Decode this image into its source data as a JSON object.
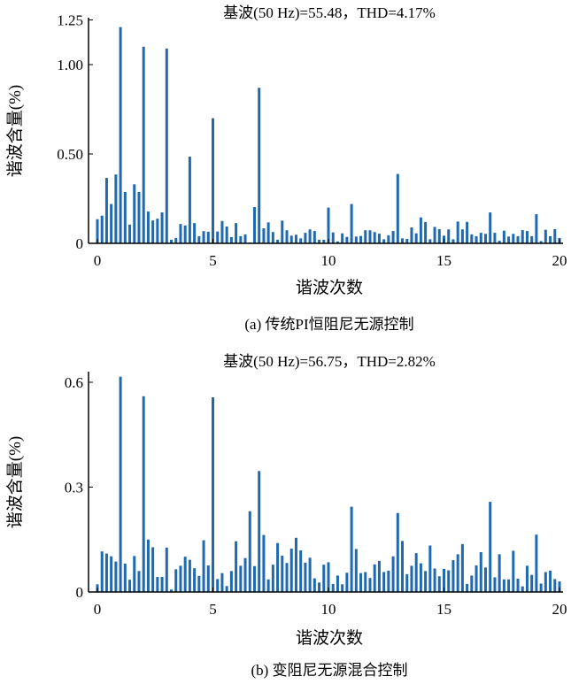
{
  "chart_data": [
    {
      "type": "bar",
      "title": "基波(50 Hz)=55.48，THD=4.17%",
      "caption": "(a) 传统PI恒阻尼无源控制",
      "xlabel": "谐波次数",
      "ylabel": "谐波含量(%)",
      "xlim": [
        0,
        20
      ],
      "ylim": [
        0,
        1.25
      ],
      "x_step": 0.2,
      "xticks": [
        "0",
        "5",
        "10",
        "15",
        "20"
      ],
      "yticks": [
        "0",
        "0.50",
        "1.00",
        "1.25"
      ],
      "ytick_values": [
        0,
        0.5,
        1.0,
        1.25
      ],
      "color": "#1f69b0",
      "values": [
        0.135,
        0.155,
        0.366,
        0.22,
        0.385,
        1.21,
        0.287,
        0.105,
        0.33,
        0.287,
        1.1,
        0.178,
        0.128,
        0.138,
        0.173,
        1.09,
        0.02,
        0.03,
        0.108,
        0.1,
        0.485,
        0.113,
        0.04,
        0.068,
        0.065,
        0.7,
        0.066,
        0.125,
        0.094,
        0.035,
        0.113,
        0.04,
        0.05,
        0.005,
        0.203,
        0.87,
        0.084,
        0.117,
        0.063,
        0.02,
        0.127,
        0.073,
        0.043,
        0.048,
        0.028,
        0.059,
        0.078,
        0.069,
        0.02,
        0.02,
        0.2,
        0.061,
        0.011,
        0.056,
        0.036,
        0.22,
        0.038,
        0.041,
        0.073,
        0.073,
        0.063,
        0.054,
        0.023,
        0.045,
        0.069,
        0.388,
        0.028,
        0.025,
        0.089,
        0.056,
        0.145,
        0.119,
        0.023,
        0.092,
        0.079,
        0.043,
        0.078,
        0.023,
        0.122,
        0.078,
        0.12,
        0.05,
        0.04,
        0.059,
        0.053,
        0.173,
        0.059,
        0.015,
        0.071,
        0.038,
        0.053,
        0.04,
        0.074,
        0.069,
        0.04,
        0.163,
        0.013,
        0.076,
        0.04,
        0.079,
        0.03
      ]
    },
    {
      "type": "bar",
      "title": "基波(50 Hz)=56.75，THD=2.82%",
      "caption": "(b) 变阻尼无源混合控制",
      "xlabel": "谐波次数",
      "ylabel": "谐波含量(%)",
      "xlim": [
        0,
        20
      ],
      "ylim": [
        0,
        0.6
      ],
      "x_step": 0.2,
      "xticks": [
        "0",
        "5",
        "10",
        "15",
        "20"
      ],
      "yticks": [
        "0",
        "0.3",
        "0.6"
      ],
      "ytick_values": [
        0,
        0.3,
        0.6
      ],
      "color": "#1f69b0",
      "values": [
        0.022,
        0.116,
        0.11,
        0.102,
        0.087,
        0.616,
        0.081,
        0.035,
        0.103,
        0.06,
        0.56,
        0.15,
        0.128,
        0.043,
        0.043,
        0.127,
        0.007,
        0.065,
        0.075,
        0.101,
        0.092,
        0.068,
        0.046,
        0.148,
        0.076,
        0.557,
        0.037,
        0.054,
        0.017,
        0.06,
        0.145,
        0.075,
        0.097,
        0.231,
        0.074,
        0.346,
        0.163,
        0.036,
        0.078,
        0.14,
        0.104,
        0.083,
        0.124,
        0.155,
        0.119,
        0.084,
        0.098,
        0.039,
        0.027,
        0.078,
        0.085,
        0.023,
        0.047,
        0.022,
        0.055,
        0.244,
        0.123,
        0.054,
        0.057,
        0.04,
        0.079,
        0.089,
        0.057,
        0.061,
        0.102,
        0.226,
        0.146,
        0.051,
        0.075,
        0.111,
        0.082,
        0.06,
        0.133,
        0.067,
        0.045,
        0.066,
        0.062,
        0.091,
        0.108,
        0.137,
        0.023,
        0.047,
        0.076,
        0.114,
        0.07,
        0.258,
        0.042,
        0.108,
        0.036,
        0.036,
        0.118,
        0.038,
        0.016,
        0.075,
        0.049,
        0.164,
        0.024,
        0.057,
        0.061,
        0.037,
        0.03
      ]
    }
  ]
}
